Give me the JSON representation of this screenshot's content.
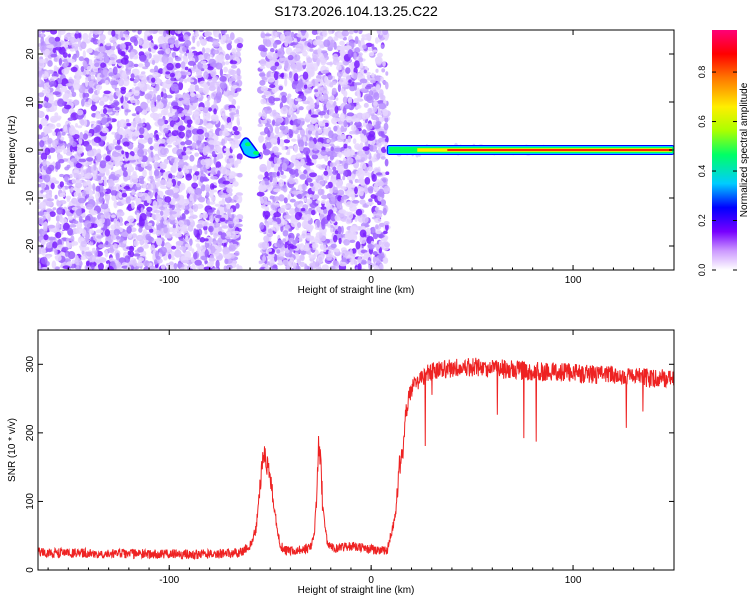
{
  "title": "S173.2026.104.13.25.C22",
  "chart_data": [
    {
      "type": "heatmap",
      "xlabel": "Height of straight line (km)",
      "ylabel": "Frequency (Hz)",
      "xlim": [
        -165,
        150
      ],
      "ylim": [
        -25,
        25
      ],
      "x_ticks": [
        -100,
        0,
        100
      ],
      "y_ticks": [
        -20,
        -10,
        0,
        10,
        20
      ],
      "grid": false,
      "colorbar": {
        "label": "Normalized spectral amplitude",
        "range": [
          0.0,
          0.97
        ],
        "ticks": [
          0.0,
          0.2,
          0.4,
          0.6,
          0.8
        ],
        "tick_labels": [
          "0.0",
          "0.2",
          "0.4",
          "0.6",
          "0.8"
        ],
        "colors": [
          "#ffffff",
          "#cc99ff",
          "#7700ff",
          "#0000ff",
          "#00ccff",
          "#00ff66",
          "#aaff00",
          "#ffee00",
          "#ff7700",
          "#ff0000",
          "#ff0077"
        ]
      },
      "noise_regions": [
        {
          "x": [
            -165,
            -65
          ],
          "freq": [
            -25,
            25
          ],
          "amplitude": 0.1
        },
        {
          "x": [
            -55,
            8
          ],
          "freq": [
            -25,
            25
          ],
          "amplitude": 0.1
        }
      ],
      "gap_regions": [
        {
          "x": [
            -65,
            -55
          ]
        },
        {
          "x": [
            8,
            150
          ],
          "note_free": true
        }
      ],
      "signal": [
        {
          "x": [
            -65,
            -55
          ],
          "freq": [
            -1.5,
            2.5
          ],
          "amplitude": 0.35
        },
        {
          "x": [
            8,
            150
          ],
          "freq": [
            0,
            0
          ],
          "amplitude": 0.92
        }
      ]
    },
    {
      "type": "line",
      "xlabel": "Height of straight line (km)",
      "ylabel": "SNR (10 * v/v)",
      "xlim": [
        -165,
        150
      ],
      "ylim": [
        0,
        350
      ],
      "x_ticks": [
        -100,
        0,
        100
      ],
      "y_ticks": [
        0,
        100,
        200,
        300
      ],
      "grid": false,
      "series": [
        {
          "color": "#ee2222",
          "x": [
            -165,
            -150,
            -135,
            -120,
            -105,
            -90,
            -75,
            -65,
            -60,
            -57,
            -55,
            -53,
            -50,
            -47,
            -45,
            -42,
            -38,
            -34,
            -30,
            -28,
            -27,
            -26,
            -25,
            -24,
            -23,
            -22,
            -20,
            -18,
            -15,
            -12,
            -8,
            -4,
            0,
            4,
            8,
            12,
            14,
            15,
            16,
            17,
            18,
            19,
            20,
            22,
            24,
            26,
            28,
            30,
            35,
            40,
            45,
            50,
            55,
            60,
            65,
            70,
            75,
            80,
            85,
            90,
            95,
            100,
            105,
            110,
            115,
            120,
            125,
            128,
            130,
            132,
            135,
            140,
            145,
            150
          ],
          "values": [
            25,
            25,
            24,
            24,
            23,
            23,
            24,
            25,
            35,
            60,
            120,
            175,
            130,
            70,
            35,
            28,
            28,
            30,
            32,
            60,
            110,
            190,
            160,
            95,
            70,
            45,
            35,
            30,
            32,
            35,
            35,
            32,
            30,
            28,
            28,
            80,
            150,
            170,
            180,
            235,
            240,
            255,
            265,
            272,
            280,
            283,
            288,
            290,
            292,
            295,
            297,
            296,
            295,
            294,
            293,
            292,
            291,
            290,
            289,
            290,
            289,
            287,
            286,
            285,
            284,
            284,
            283,
            282,
            282,
            281,
            280,
            280,
            280,
            282
          ]
        }
      ]
    }
  ]
}
